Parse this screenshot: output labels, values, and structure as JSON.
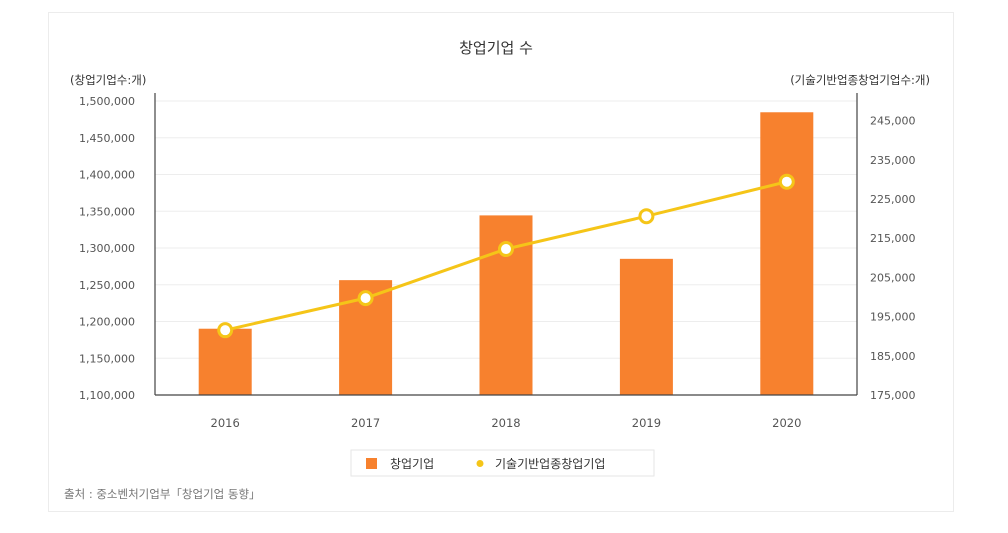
{
  "chart_data": {
    "type": "bar",
    "title": "창업기업 수",
    "left_axis_label": "(창업기업수:개)",
    "right_axis_label": "(기술기반업종창업기업수:개)",
    "categories": [
      "2016",
      "2017",
      "2018",
      "2019",
      "2020"
    ],
    "series": [
      {
        "name": "창업기업",
        "type": "bar",
        "axis": "left",
        "color": "#F7812E",
        "values": [
          1190177,
          1256267,
          1344366,
          1285259,
          1484667
        ]
      },
      {
        "name": "기술기반업종창업기업",
        "type": "line",
        "axis": "right",
        "color": "#F5C518",
        "values": [
          191541,
          199716,
          212237,
          220607,
          229416
        ]
      }
    ],
    "left_axis": {
      "min": 1100000,
      "max": 1500000,
      "ticks": [
        "1,100,000",
        "1,150,000",
        "1,200,000",
        "1,250,000",
        "1,300,000",
        "1,350,000",
        "1,400,000",
        "1,450,000",
        "1,500,000"
      ]
    },
    "right_axis": {
      "min": 175000,
      "max": 250000,
      "ticks": [
        "175,000",
        "185,000",
        "195,000",
        "205,000",
        "215,000",
        "225,000",
        "235,000",
        "245,000"
      ]
    },
    "grid": true,
    "legend_position": "bottom-center"
  },
  "source_text": "출처 : 중소벤처기업부「창업기업 동향」"
}
